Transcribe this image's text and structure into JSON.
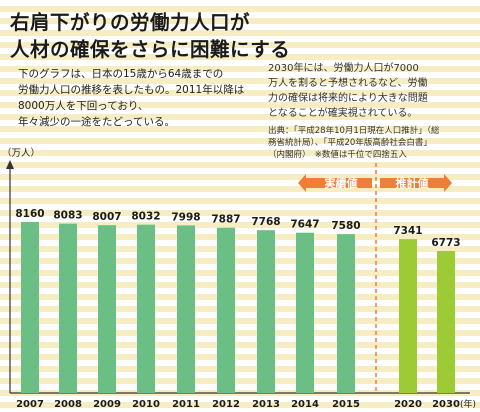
{
  "title_line1": "右肩下がりの労働力人口が",
  "title_line2": "人材の確保をさらに困難にする",
  "description_lines": [
    "下のグラフは、日本の15歳から64歳までの",
    "労働力人口の推移を表したもの。2011年以降は",
    "8000万人を下回っており、",
    "年々減少の一途をたどっている。"
  ],
  "note_lines": [
    "2030年には、労働力人口が7000",
    "万人を割ると予想されるなど、労働",
    "力の確保は将来的により大きな問題",
    "となることが確実視されている。"
  ],
  "source_lines": [
    "出典：「平成28年10月1日現在人口推計」（総",
    "務省統計局）、「平成20年版高齢社会白書」",
    "（内閣府）　※数値は千位で四捨五入"
  ],
  "colors": {
    "actual_bar": "#6cbf84",
    "forecast_bar": "#9ccb35",
    "arrow": "#ee7e38",
    "divider": "#ee7e38",
    "stripe": "#f6eec2"
  },
  "chart_data": {
    "type": "bar",
    "y_unit_label": "（万人）",
    "x_unit_label": "(年)",
    "categories": [
      "2007",
      "2008",
      "2009",
      "2010",
      "2011",
      "2012",
      "2013",
      "2014",
      "2015",
      "2020",
      "2030"
    ],
    "values": [
      8160,
      8083,
      8007,
      8032,
      7998,
      7887,
      7768,
      7647,
      7580,
      7341,
      6773
    ],
    "value_labels": [
      "8160",
      "8083",
      "8007",
      "8032",
      "7998",
      "7887",
      "7768",
      "7647",
      "7580",
      "7341",
      "6773"
    ],
    "bar_kind": [
      "actual",
      "actual",
      "actual",
      "actual",
      "actual",
      "actual",
      "actual",
      "actual",
      "actual",
      "forecast",
      "forecast"
    ],
    "actual_label": "実績値",
    "forecast_label": "推計値",
    "y_axis_break": true
  }
}
